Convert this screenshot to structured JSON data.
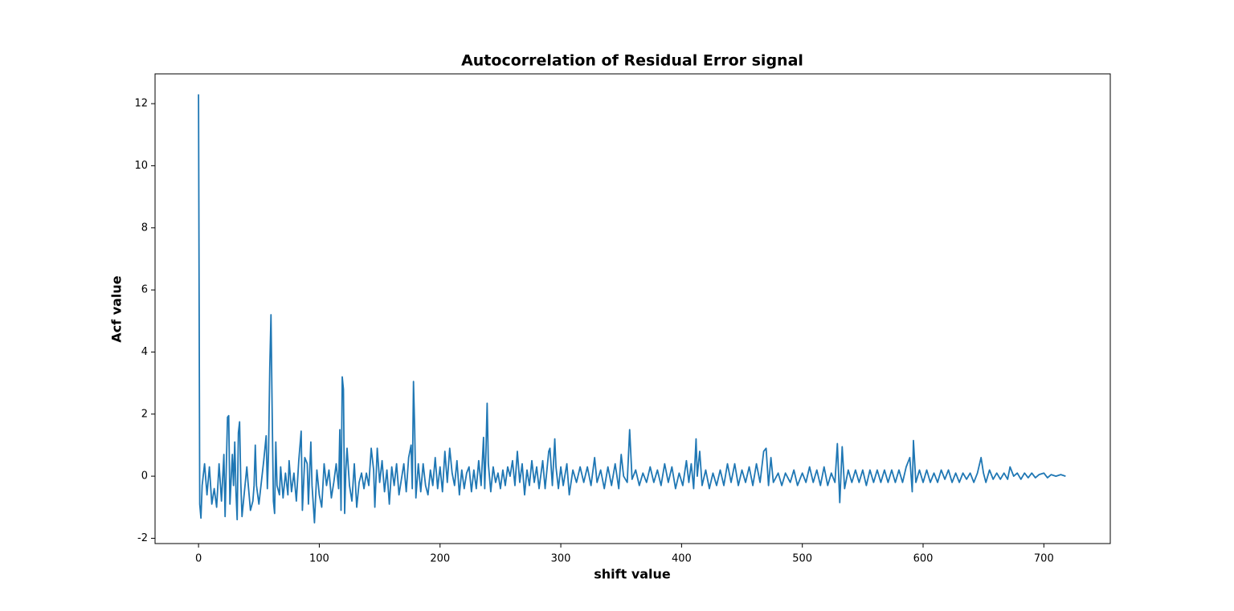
{
  "chart_data": {
    "type": "line",
    "title": "Autocorrelation of Residual Error signal",
    "x_label": "shift value",
    "y_label": "Acf value",
    "color": "#1f77b4",
    "x": [
      0,
      1,
      2,
      3,
      5,
      7,
      9,
      11,
      13,
      15,
      17,
      19,
      21,
      22,
      24,
      25,
      26,
      28,
      29,
      30,
      31,
      32,
      33,
      34,
      35,
      36,
      38,
      40,
      41,
      43,
      45,
      46,
      47,
      48,
      50,
      52,
      54,
      56,
      57,
      58,
      59,
      60,
      61,
      62,
      63,
      64,
      65,
      67,
      68,
      70,
      72,
      74,
      75,
      77,
      79,
      81,
      83,
      85,
      86,
      88,
      90,
      91,
      93,
      94,
      96,
      98,
      100,
      102,
      104,
      106,
      108,
      110,
      112,
      114,
      116,
      117,
      118,
      119,
      120,
      121,
      122,
      123,
      125,
      127,
      129,
      131,
      133,
      135,
      137,
      139,
      141,
      143,
      145,
      146,
      148,
      150,
      152,
      154,
      156,
      158,
      160,
      162,
      164,
      166,
      168,
      170,
      172,
      174,
      176,
      177,
      178,
      179,
      180,
      182,
      184,
      186,
      188,
      190,
      192,
      194,
      196,
      198,
      200,
      202,
      204,
      206,
      208,
      210,
      212,
      214,
      216,
      218,
      220,
      222,
      224,
      226,
      228,
      230,
      232,
      234,
      236,
      237,
      238,
      239,
      240,
      242,
      244,
      246,
      248,
      250,
      252,
      254,
      256,
      258,
      260,
      262,
      264,
      266,
      268,
      270,
      272,
      274,
      276,
      278,
      280,
      282,
      285,
      287,
      290,
      291,
      293,
      295,
      296,
      298,
      300,
      302,
      305,
      307,
      310,
      313,
      316,
      319,
      322,
      325,
      328,
      330,
      333,
      336,
      339,
      342,
      345,
      348,
      350,
      352,
      355,
      357,
      359,
      362,
      365,
      368,
      371,
      374,
      377,
      380,
      383,
      386,
      389,
      392,
      395,
      398,
      401,
      404,
      406,
      408,
      410,
      412,
      413,
      415,
      417,
      420,
      423,
      426,
      429,
      432,
      435,
      438,
      441,
      444,
      447,
      450,
      453,
      456,
      459,
      462,
      465,
      468,
      470,
      472,
      474,
      476,
      480,
      483,
      486,
      490,
      493,
      496,
      500,
      503,
      506,
      509,
      512,
      515,
      518,
      521,
      524,
      527,
      529,
      531,
      533,
      535,
      538,
      541,
      544,
      547,
      550,
      553,
      556,
      559,
      562,
      565,
      568,
      571,
      574,
      577,
      580,
      583,
      586,
      589,
      591,
      592,
      594,
      597,
      600,
      603,
      606,
      609,
      612,
      615,
      618,
      621,
      624,
      627,
      630,
      633,
      636,
      639,
      642,
      645,
      648,
      650,
      652,
      655,
      658,
      661,
      664,
      667,
      670,
      672,
      675,
      678,
      681,
      684,
      687,
      690,
      693,
      696,
      700,
      703,
      706,
      710,
      714,
      718
    ],
    "values": [
      12.3,
      -0.9,
      -1.35,
      -0.3,
      0.4,
      -0.6,
      0.3,
      -0.9,
      -0.4,
      -1.0,
      0.4,
      -0.8,
      0.7,
      -1.3,
      1.9,
      1.95,
      -0.9,
      0.7,
      -0.3,
      1.1,
      -0.5,
      -1.4,
      1.4,
      1.75,
      -0.2,
      -1.3,
      -0.5,
      0.3,
      -0.2,
      -1.1,
      -0.8,
      -0.3,
      1.0,
      -0.3,
      -0.9,
      -0.2,
      0.5,
      1.3,
      -0.4,
      0.8,
      3.5,
      5.2,
      2.0,
      -0.8,
      -1.2,
      1.1,
      -0.3,
      -0.6,
      0.3,
      -0.7,
      0.1,
      -0.6,
      0.5,
      -0.5,
      0.1,
      -0.8,
      0.5,
      1.45,
      -1.1,
      0.6,
      0.4,
      -0.9,
      1.1,
      -0.3,
      -1.5,
      0.2,
      -0.6,
      -1.0,
      0.4,
      -0.3,
      0.2,
      -0.7,
      -0.2,
      0.4,
      -0.4,
      1.5,
      -1.1,
      3.2,
      2.8,
      -1.2,
      0.2,
      0.9,
      -0.3,
      -0.8,
      0.4,
      -1.0,
      -0.2,
      0.1,
      -0.4,
      0.1,
      -0.3,
      0.9,
      0.2,
      -1.0,
      0.9,
      -0.2,
      0.5,
      -0.5,
      0.2,
      -0.9,
      0.3,
      -0.3,
      0.4,
      -0.6,
      -0.1,
      0.4,
      -0.5,
      0.6,
      1.0,
      -0.4,
      3.05,
      1.5,
      -0.7,
      0.4,
      -0.5,
      0.4,
      -0.3,
      -0.6,
      0.2,
      -0.3,
      0.6,
      -0.4,
      0.3,
      -0.5,
      0.8,
      -0.2,
      0.9,
      0.1,
      -0.3,
      0.5,
      -0.6,
      0.2,
      -0.4,
      0.1,
      0.3,
      -0.5,
      0.2,
      -0.4,
      0.5,
      -0.3,
      1.25,
      -0.4,
      0.8,
      2.35,
      0.4,
      -0.5,
      0.3,
      -0.2,
      0.1,
      -0.4,
      0.2,
      -0.3,
      0.3,
      0.0,
      0.5,
      -0.3,
      0.8,
      -0.2,
      0.4,
      -0.6,
      0.2,
      -0.3,
      0.5,
      -0.2,
      0.3,
      -0.4,
      0.5,
      -0.4,
      0.8,
      0.9,
      -0.3,
      1.2,
      0.3,
      -0.4,
      0.3,
      -0.3,
      0.4,
      -0.6,
      0.2,
      -0.2,
      0.3,
      -0.2,
      0.3,
      -0.3,
      0.6,
      -0.2,
      0.2,
      -0.4,
      0.3,
      -0.3,
      0.4,
      -0.4,
      0.7,
      0.0,
      -0.2,
      1.5,
      -0.1,
      0.2,
      -0.3,
      0.1,
      -0.2,
      0.3,
      -0.2,
      0.2,
      -0.3,
      0.4,
      -0.2,
      0.3,
      -0.4,
      0.1,
      -0.3,
      0.5,
      -0.2,
      0.4,
      -0.4,
      1.2,
      0.0,
      0.8,
      -0.3,
      0.2,
      -0.4,
      0.1,
      -0.3,
      0.2,
      -0.3,
      0.4,
      -0.2,
      0.4,
      -0.3,
      0.2,
      -0.2,
      0.3,
      -0.3,
      0.4,
      -0.2,
      0.8,
      0.9,
      -0.3,
      0.6,
      -0.2,
      0.1,
      -0.3,
      0.1,
      -0.2,
      0.2,
      -0.3,
      0.1,
      -0.2,
      0.3,
      -0.2,
      0.2,
      -0.3,
      0.3,
      -0.3,
      0.1,
      -0.2,
      1.05,
      -0.85,
      0.95,
      -0.4,
      0.2,
      -0.2,
      0.2,
      -0.2,
      0.2,
      -0.3,
      0.2,
      -0.2,
      0.2,
      -0.2,
      0.2,
      -0.2,
      0.2,
      -0.2,
      0.2,
      -0.2,
      0.3,
      0.6,
      -0.5,
      1.15,
      -0.2,
      0.2,
      -0.2,
      0.2,
      -0.2,
      0.1,
      -0.2,
      0.2,
      -0.1,
      0.2,
      -0.2,
      0.1,
      -0.2,
      0.1,
      -0.1,
      0.1,
      -0.2,
      0.1,
      0.6,
      0.1,
      -0.2,
      0.2,
      -0.1,
      0.1,
      -0.1,
      0.1,
      -0.1,
      0.3,
      0.0,
      0.1,
      -0.1,
      0.1,
      -0.05,
      0.1,
      -0.05,
      0.05,
      0.1,
      -0.05,
      0.05,
      0.0,
      0.05,
      0.0
    ],
    "xlim": [
      -36,
      755
    ],
    "ylim": [
      -2.17,
      12.96
    ],
    "xticks": [
      0,
      100,
      200,
      300,
      400,
      500,
      600,
      700
    ],
    "yticks": [
      -2,
      0,
      2,
      4,
      6,
      8,
      10,
      12
    ]
  }
}
